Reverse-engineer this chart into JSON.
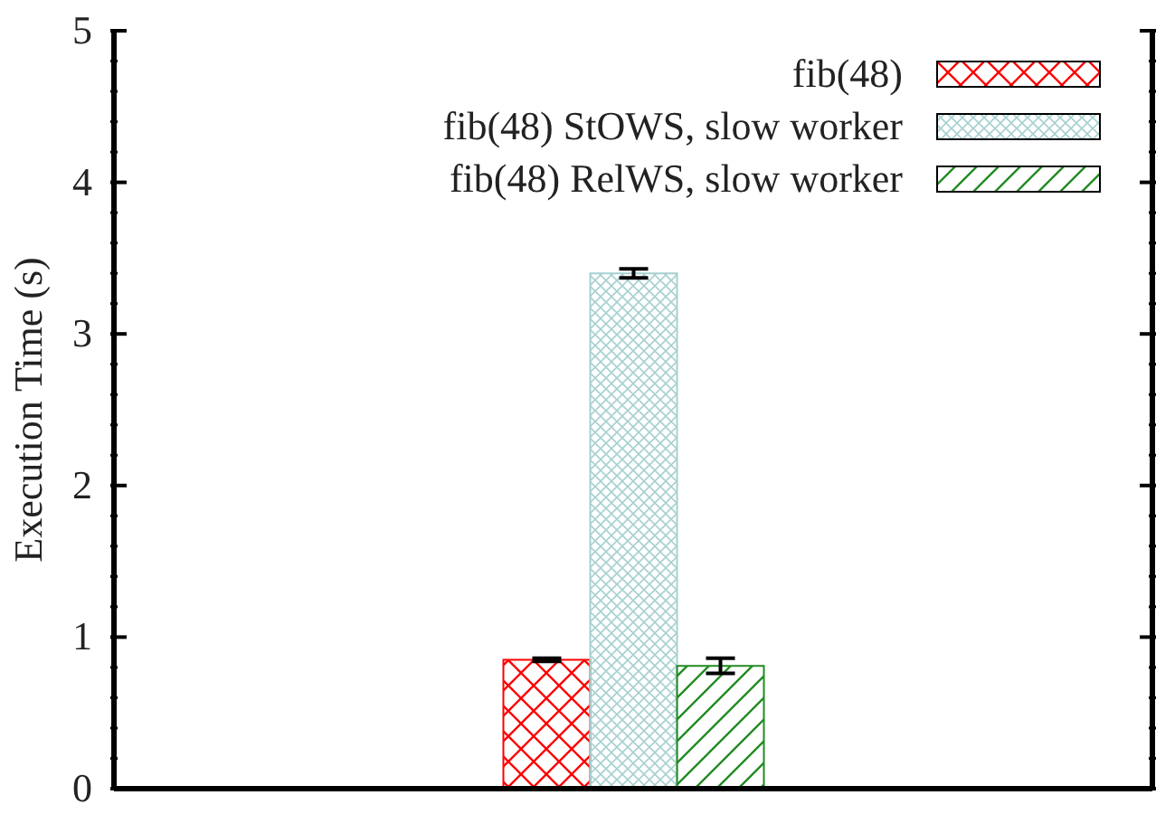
{
  "chart_data": {
    "type": "bar",
    "ylabel": "Execution Time (s)",
    "categories": [
      null
    ],
    "series": [
      {
        "name": "fib(48)",
        "color": "#ff0000",
        "values": [
          0.85
        ],
        "errors": [
          0.01
        ]
      },
      {
        "name": "fib(48) StOWS, slow worker",
        "color": "#a8d0d0",
        "values": [
          3.4
        ],
        "errors": [
          0.03
        ]
      },
      {
        "name": "fib(48) RelWS, slow worker",
        "color": "#228b22",
        "values": [
          0.81
        ],
        "errors": [
          0.05
        ]
      }
    ],
    "ylim": [
      0,
      5
    ],
    "yticks": [
      0,
      {
        "value": 0.2,
        "label": null
      },
      {
        "value": 0.4,
        "label": null
      },
      {
        "value": 0.6,
        "label": null
      },
      {
        "value": 0.8,
        "label": null
      },
      1,
      {
        "value": 1.2,
        "label": null
      },
      {
        "value": 1.4,
        "label": null
      },
      {
        "value": 1.6,
        "label": null
      },
      {
        "value": 1.8,
        "label": null
      },
      2,
      {
        "value": 2.2,
        "label": null
      },
      {
        "value": 2.4,
        "label": null
      },
      {
        "value": 2.6,
        "label": null
      },
      {
        "value": 2.8,
        "label": null
      },
      3,
      {
        "value": 3.2,
        "label": null
      },
      {
        "value": 3.4,
        "label": null
      },
      {
        "value": 3.6,
        "label": null
      },
      {
        "value": 3.8,
        "label": null
      },
      4,
      {
        "value": 4.2,
        "label": null
      },
      {
        "value": 4.4,
        "label": null
      },
      {
        "value": 4.6,
        "label": null
      },
      {
        "value": 4.8,
        "label": null
      },
      5
    ],
    "grid": false,
    "legend": "top right",
    "tick_labels": "y"
  }
}
